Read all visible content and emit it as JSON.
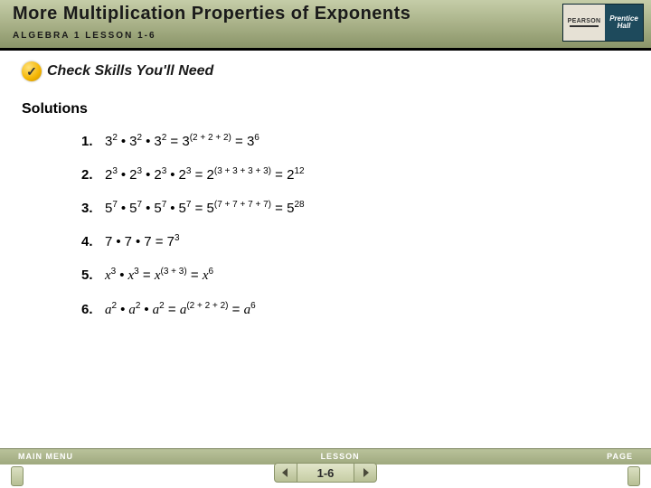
{
  "header": {
    "title": "More Multiplication Properties of Exponents",
    "subtitle": "ALGEBRA 1   LESSON 1-6",
    "logo": {
      "brand": "PEARSON",
      "line1": "Prentice",
      "line2": "Hall"
    },
    "bg_gradient": [
      "#c5cda8",
      "#a3ac82",
      "#8a9468"
    ]
  },
  "check": {
    "icon_glyph": "✓",
    "label": "Check Skills You'll Need"
  },
  "solutions": {
    "heading": "Solutions",
    "items": [
      {
        "n": "1.",
        "terms": [
          [
            "3",
            "2"
          ],
          [
            "3",
            "2"
          ],
          [
            "3",
            "2"
          ]
        ],
        "step_base": "3",
        "step_exp": "(2 + 2 + 2)",
        "result_base": "3",
        "result_exp": "6",
        "italic_base": false
      },
      {
        "n": "2.",
        "terms": [
          [
            "2",
            "3"
          ],
          [
            "2",
            "3"
          ],
          [
            "2",
            "3"
          ],
          [
            "2",
            "3"
          ]
        ],
        "step_base": "2",
        "step_exp": "(3 + 3 + 3 + 3)",
        "result_base": "2",
        "result_exp": "12",
        "italic_base": false
      },
      {
        "n": "3.",
        "terms": [
          [
            "5",
            "7"
          ],
          [
            "5",
            "7"
          ],
          [
            "5",
            "7"
          ],
          [
            "5",
            "7"
          ]
        ],
        "step_base": "5",
        "step_exp": "(7 + 7 + 7 + 7)",
        "result_base": "5",
        "result_exp": "28",
        "italic_base": false
      },
      {
        "n": "4.",
        "terms": [
          [
            "7",
            ""
          ],
          [
            "7",
            ""
          ],
          [
            "7",
            ""
          ]
        ],
        "step_base": "",
        "step_exp": "",
        "result_base": "7",
        "result_exp": "3",
        "italic_base": false
      },
      {
        "n": "5.",
        "terms": [
          [
            "x",
            "3"
          ],
          [
            "x",
            "3"
          ]
        ],
        "step_base": "x",
        "step_exp": "(3 + 3)",
        "result_base": "x",
        "result_exp": "6",
        "italic_base": true
      },
      {
        "n": "6.",
        "terms": [
          [
            "a",
            "2"
          ],
          [
            "a",
            "2"
          ],
          [
            "a",
            "2"
          ]
        ],
        "step_base": "a",
        "step_exp": "(2 + 2 + 2)",
        "result_base": "a",
        "result_exp": "6",
        "italic_base": true
      }
    ]
  },
  "footer": {
    "left": "MAIN MENU",
    "mid": "LESSON",
    "right": "PAGE",
    "page": "1-6",
    "accent": "#b7bf94"
  }
}
